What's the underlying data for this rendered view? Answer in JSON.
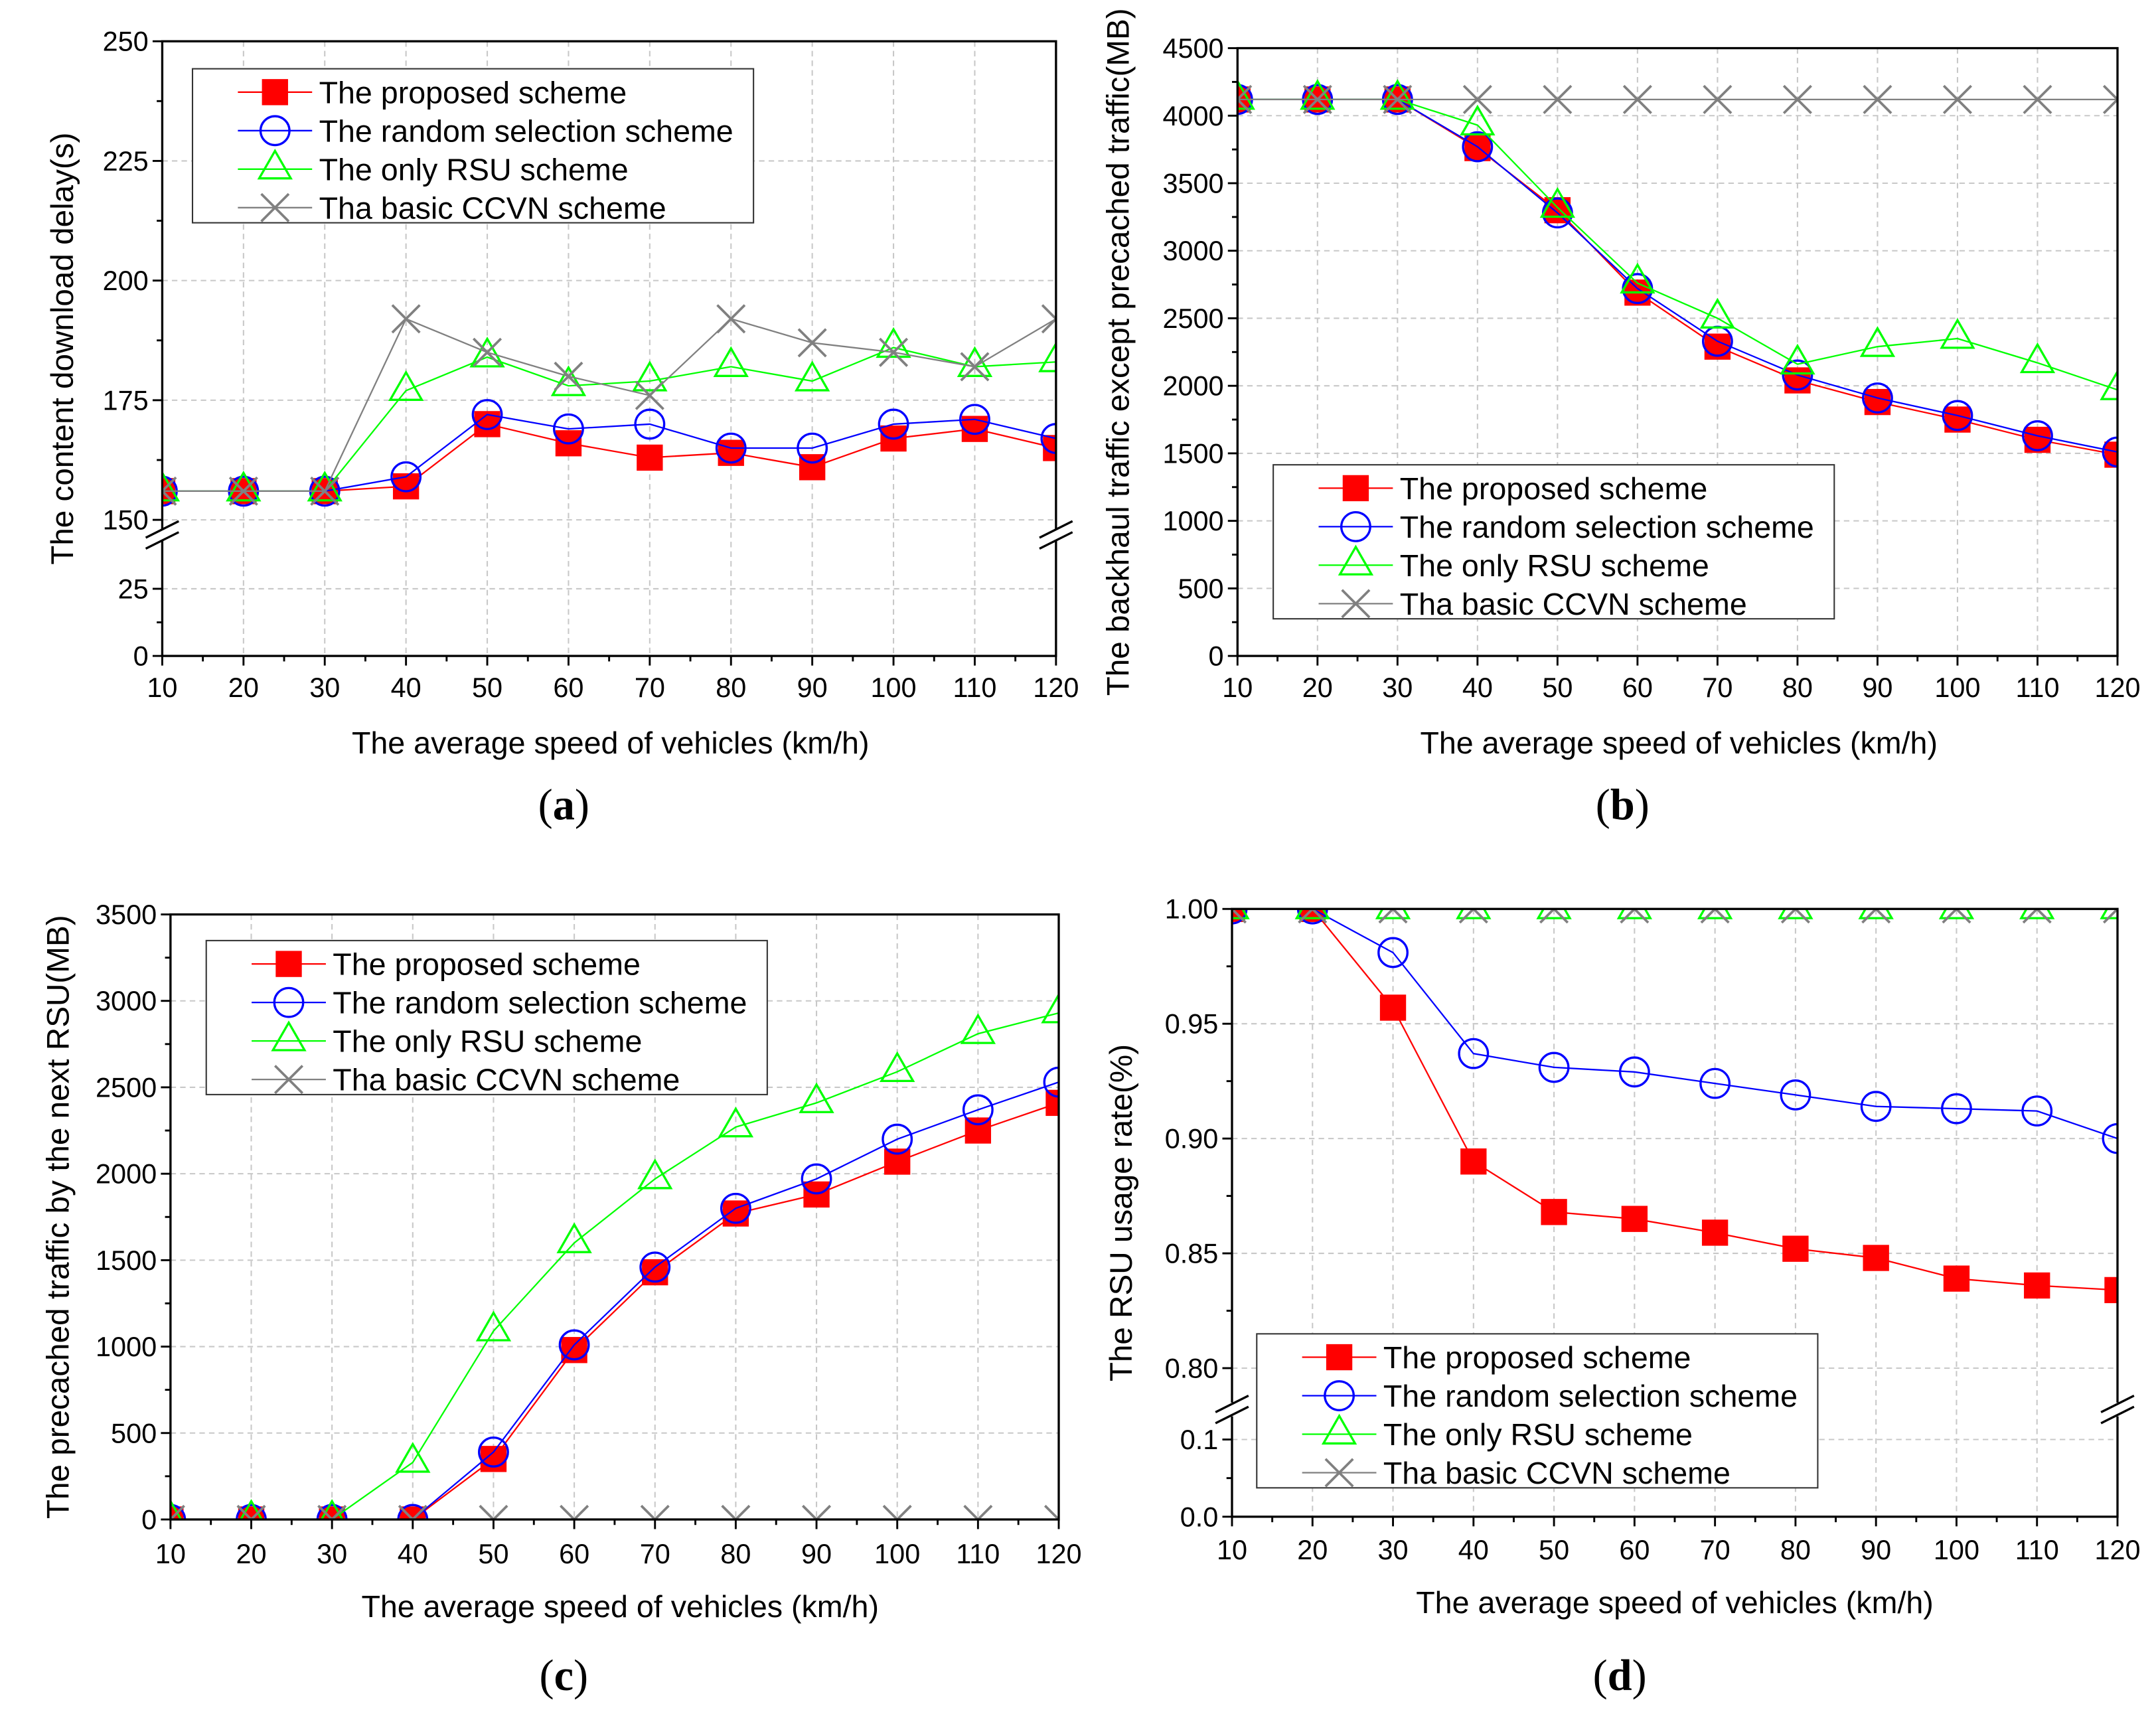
{
  "chart_data": [
    {
      "type": "line",
      "panel_label": "(a)",
      "xlabel": "The average speed of vehicles (km/h)",
      "ylabel": "The content download delay(s)",
      "x": [
        10,
        20,
        30,
        40,
        50,
        60,
        70,
        80,
        90,
        100,
        110,
        120
      ],
      "xlim": [
        10,
        120
      ],
      "y_axis_break": true,
      "y_segments": [
        {
          "range": [
            0,
            43
          ],
          "ticks": [
            0,
            25
          ],
          "tick_labels": [
            "0",
            "25"
          ]
        },
        {
          "range": [
            148,
            250
          ],
          "ticks": [
            150,
            175,
            200,
            225,
            250
          ],
          "tick_labels": [
            "150",
            "175",
            "200",
            "225",
            "250"
          ]
        }
      ],
      "grid": true,
      "legend_position": "top-left",
      "series": [
        {
          "name": "The proposed scheme",
          "color": "#ff0000",
          "marker": "square",
          "values": [
            156,
            156,
            156,
            157,
            170,
            166,
            163,
            164,
            161,
            167,
            169,
            165
          ]
        },
        {
          "name": "The random selection scheme",
          "color": "#0000ff",
          "marker": "circle",
          "values": [
            156,
            156,
            156,
            159,
            172,
            169,
            170,
            165,
            165,
            170,
            171,
            167
          ]
        },
        {
          "name": "The only RSU scheme",
          "color": "#00ff00",
          "marker": "triangle",
          "values": [
            156,
            156,
            156,
            177,
            184,
            178,
            179,
            182,
            179,
            186,
            182,
            183
          ]
        },
        {
          "name": "Tha basic CCVN scheme",
          "color": "#808080",
          "marker": "cross",
          "values": [
            156,
            156,
            156,
            192,
            185,
            180,
            176,
            192,
            187,
            185,
            182,
            192
          ]
        }
      ]
    },
    {
      "type": "line",
      "panel_label": "(b)",
      "xlabel": "The average speed of vehicles (km/h)",
      "ylabel": "The backhaul traffic except precached traffic(MB)",
      "x": [
        10,
        20,
        30,
        40,
        50,
        60,
        70,
        80,
        90,
        100,
        110,
        120
      ],
      "xlim": [
        10,
        120
      ],
      "y_axis_break": false,
      "y_segments": [
        {
          "range": [
            0,
            4500
          ],
          "ticks": [
            0,
            500,
            1000,
            1500,
            2000,
            2500,
            3000,
            3500,
            4000,
            4500
          ],
          "tick_labels": [
            "0",
            "500",
            "1000",
            "1500",
            "2000",
            "2500",
            "3000",
            "3500",
            "4000",
            "4500"
          ]
        }
      ],
      "grid": true,
      "legend_position": "bottom-left",
      "series": [
        {
          "name": "The proposed scheme",
          "color": "#ff0000",
          "marker": "square",
          "values": [
            4120,
            4120,
            4120,
            3760,
            3300,
            2690,
            2290,
            2040,
            1880,
            1750,
            1600,
            1490
          ]
        },
        {
          "name": "The random selection scheme",
          "color": "#0000ff",
          "marker": "circle",
          "values": [
            4120,
            4120,
            4120,
            3770,
            3280,
            2720,
            2330,
            2080,
            1910,
            1780,
            1630,
            1510
          ]
        },
        {
          "name": "The only RSU scheme",
          "color": "#00ff00",
          "marker": "triangle",
          "values": [
            4120,
            4120,
            4120,
            3930,
            3320,
            2760,
            2500,
            2160,
            2290,
            2350,
            2170,
            1970
          ]
        },
        {
          "name": "Tha basic CCVN scheme",
          "color": "#808080",
          "marker": "cross",
          "values": [
            4120,
            4120,
            4120,
            4120,
            4120,
            4120,
            4120,
            4120,
            4120,
            4120,
            4120,
            4120
          ]
        }
      ]
    },
    {
      "type": "line",
      "panel_label": "(c)",
      "xlabel": "The average speed of vehicles (km/h)",
      "ylabel": "The precached traffic by the next RSU(MB)",
      "x": [
        10,
        20,
        30,
        40,
        50,
        60,
        70,
        80,
        90,
        100,
        110,
        120
      ],
      "xlim": [
        10,
        120
      ],
      "y_axis_break": false,
      "y_segments": [
        {
          "range": [
            0,
            3500
          ],
          "ticks": [
            0,
            500,
            1000,
            1500,
            2000,
            2500,
            3000,
            3500
          ],
          "tick_labels": [
            "0",
            "500",
            "1000",
            "1500",
            "2000",
            "2500",
            "3000",
            "3500"
          ]
        }
      ],
      "grid": true,
      "legend_position": "top-left",
      "series": [
        {
          "name": "The proposed scheme",
          "color": "#ff0000",
          "marker": "square",
          "values": [
            0,
            0,
            0,
            0,
            350,
            980,
            1430,
            1770,
            1880,
            2070,
            2250,
            2410
          ]
        },
        {
          "name": "The random selection scheme",
          "color": "#0000ff",
          "marker": "circle",
          "values": [
            0,
            0,
            0,
            0,
            390,
            1010,
            1460,
            1800,
            1970,
            2200,
            2370,
            2530
          ]
        },
        {
          "name": "The only RSU scheme",
          "color": "#00ff00",
          "marker": "triangle",
          "values": [
            0,
            0,
            0,
            330,
            1090,
            1600,
            1970,
            2270,
            2410,
            2590,
            2810,
            2930
          ]
        },
        {
          "name": "Tha basic CCVN scheme",
          "color": "#808080",
          "marker": "cross",
          "values": [
            0,
            0,
            0,
            0,
            0,
            0,
            0,
            0,
            0,
            0,
            0,
            0
          ]
        }
      ]
    },
    {
      "type": "line",
      "panel_label": "(d)",
      "xlabel": "The average speed of vehicles (km/h)",
      "ylabel": "The RSU usage rate(%)",
      "x": [
        10,
        20,
        30,
        40,
        50,
        60,
        70,
        80,
        90,
        100,
        110,
        120
      ],
      "xlim": [
        10,
        120
      ],
      "y_axis_break": true,
      "y_segments": [
        {
          "range": [
            0,
            0.13
          ],
          "ticks": [
            0.0,
            0.1
          ],
          "tick_labels": [
            "0.0",
            "0.1"
          ]
        },
        {
          "range": [
            0.785,
            1.0
          ],
          "ticks": [
            0.8,
            0.85,
            0.9,
            0.95,
            1.0
          ],
          "tick_labels": [
            "0.80",
            "0.85",
            "0.90",
            "0.95",
            "1.00"
          ]
        }
      ],
      "grid": true,
      "legend_position": "bottom-left",
      "series": [
        {
          "name": "The proposed scheme",
          "color": "#ff0000",
          "marker": "square",
          "values": [
            1.0,
            1.0,
            0.957,
            0.89,
            0.868,
            0.865,
            0.859,
            0.852,
            0.848,
            0.839,
            0.836,
            0.834
          ]
        },
        {
          "name": "The random selection scheme",
          "color": "#0000ff",
          "marker": "circle",
          "values": [
            1.0,
            1.0,
            0.981,
            0.937,
            0.931,
            0.929,
            0.924,
            0.919,
            0.914,
            0.913,
            0.912,
            0.9
          ]
        },
        {
          "name": "The only RSU scheme",
          "color": "#00ff00",
          "marker": "triangle",
          "values": [
            1.0,
            1.0,
            1.0,
            1.0,
            1.0,
            1.0,
            1.0,
            1.0,
            1.0,
            1.0,
            1.0,
            1.0
          ]
        },
        {
          "name": "Tha basic CCVN scheme",
          "color": "#808080",
          "marker": "cross",
          "values": [
            1.0,
            1.0,
            1.0,
            1.0,
            1.0,
            1.0,
            1.0,
            1.0,
            1.0,
            1.0,
            1.0,
            1.0
          ]
        }
      ]
    }
  ]
}
